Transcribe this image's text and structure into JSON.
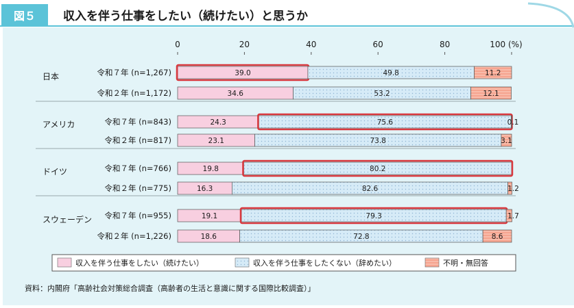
{
  "figure": {
    "tag": "図５",
    "title": "収入を伴う仕事をしたい（続けたい）と思うか",
    "source": "資料：内閣府「高齢社会対策総合調査（高齢者の生活と意識に関する国際比較調査）」"
  },
  "colors": {
    "header_blue": "#5bc3d8",
    "panel_bg": "#e3f4f8",
    "pink": "#f8cfe0",
    "blue_dots": "#d6ebf7",
    "salmon": "#f6a48f",
    "highlight_red": "#d9383e"
  },
  "chart_data": {
    "type": "bar",
    "orientation": "horizontal-stacked",
    "xlim": [
      0,
      100
    ],
    "x_ticks": [
      "0",
      "20",
      "40",
      "60",
      "80",
      "100 (%)"
    ],
    "groups": [
      {
        "name": "日本",
        "rows": [
          {
            "label": "令和７年 (n=1,267)",
            "values": [
              39.0,
              49.8,
              11.2
            ],
            "labels": [
              "39.0",
              "49.8",
              "11.2"
            ],
            "highlight": 0
          },
          {
            "label": "令和２年 (n=1,172)",
            "values": [
              34.6,
              53.2,
              12.1
            ],
            "labels": [
              "34.6",
              "53.2",
              "12.1"
            ],
            "highlight": null
          }
        ]
      },
      {
        "name": "アメリカ",
        "rows": [
          {
            "label": "令和７年 (n=843)",
            "values": [
              24.3,
              75.6,
              0.1
            ],
            "labels": [
              "24.3",
              "75.6",
              "0.1"
            ],
            "highlight": 1
          },
          {
            "label": "令和２年 (n=817)",
            "values": [
              23.1,
              73.8,
              3.1
            ],
            "labels": [
              "23.1",
              "73.8",
              "3.1"
            ],
            "highlight": null
          }
        ]
      },
      {
        "name": "ドイツ",
        "rows": [
          {
            "label": "令和７年 (n=766)",
            "values": [
              19.8,
              80.2,
              0.0
            ],
            "labels": [
              "19.8",
              "80.2",
              ""
            ],
            "highlight": 1
          },
          {
            "label": "令和２年 (n=775)",
            "values": [
              16.3,
              82.6,
              1.2
            ],
            "labels": [
              "16.3",
              "82.6",
              "1.2"
            ],
            "highlight": null
          }
        ]
      },
      {
        "name": "スウェーデン",
        "rows": [
          {
            "label": "令和７年 (n=955)",
            "values": [
              19.1,
              79.3,
              1.7
            ],
            "labels": [
              "19.1",
              "79.3",
              "1.7"
            ],
            "highlight": 1
          },
          {
            "label": "令和２年 (n=1,226)",
            "values": [
              18.6,
              72.8,
              8.6
            ],
            "labels": [
              "18.6",
              "72.8",
              "8.6"
            ],
            "highlight": null
          }
        ]
      }
    ],
    "legend": [
      {
        "name": "収入を伴う仕事をしたい（続けたい）",
        "style": "pink"
      },
      {
        "name": "収入を伴う仕事をしたくない（辞めたい）",
        "style": "blue_dots"
      },
      {
        "name": "不明・無回答",
        "style": "salmon"
      }
    ],
    "legend_position": "bottom"
  }
}
